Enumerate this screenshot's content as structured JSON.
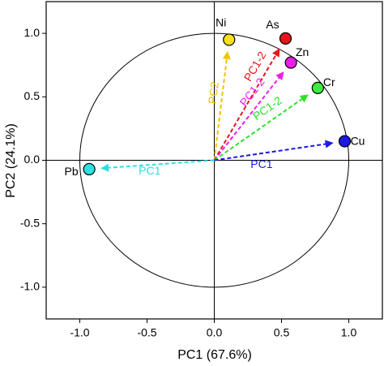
{
  "chart_data": {
    "type": "scatter",
    "xlabel": "PC1 (67.6%)",
    "ylabel": "PC2 (24.1%)",
    "xlim": [
      -1.25,
      1.25
    ],
    "ylim": [
      -1.25,
      1.25
    ],
    "xticks": [
      {
        "value": -1,
        "label": "-1.0"
      },
      {
        "value": -0.5,
        "label": "-0.5"
      },
      {
        "value": 0,
        "label": "0.0"
      },
      {
        "value": 0.5,
        "label": "0.5"
      },
      {
        "value": 1,
        "label": "1.0"
      }
    ],
    "yticks": [
      {
        "value": -1,
        "label": "-1.0"
      },
      {
        "value": -0.5,
        "label": "-0.5"
      },
      {
        "value": 0,
        "label": "0.0"
      },
      {
        "value": 0.5,
        "label": "0.5"
      },
      {
        "value": 1,
        "label": "1.0"
      }
    ],
    "circle_radius": 1,
    "series": [
      {
        "name": "Ni",
        "color": "#f5e21b",
        "arrow_color": "#f0c400",
        "arrow_label": "PC2",
        "x": [
          0.11
        ],
        "values": [
          0.95
        ]
      },
      {
        "name": "As",
        "color": "#e8151b",
        "arrow_color": "#e8151b",
        "arrow_label": "PC1-2",
        "x": [
          0.53
        ],
        "values": [
          0.96
        ]
      },
      {
        "name": "Zn",
        "color": "#ee1cee",
        "arrow_color": "#ee1cee",
        "arrow_label": "PC1-2",
        "x": [
          0.57
        ],
        "values": [
          0.77
        ]
      },
      {
        "name": "Cr",
        "color": "#3dec3d",
        "arrow_color": "#2ee02e",
        "arrow_label": "PC1-2",
        "x": [
          0.77
        ],
        "values": [
          0.57
        ]
      },
      {
        "name": "Cu",
        "color": "#1a1ae8",
        "arrow_color": "#1a1ae8",
        "arrow_label": "PC1",
        "x": [
          0.97
        ],
        "values": [
          0.15
        ]
      },
      {
        "name": "Pb",
        "color": "#2ee0e0",
        "arrow_color": "#2ee0e0",
        "arrow_label": "PC1",
        "x": [
          -0.93
        ],
        "values": [
          -0.07
        ]
      }
    ]
  }
}
